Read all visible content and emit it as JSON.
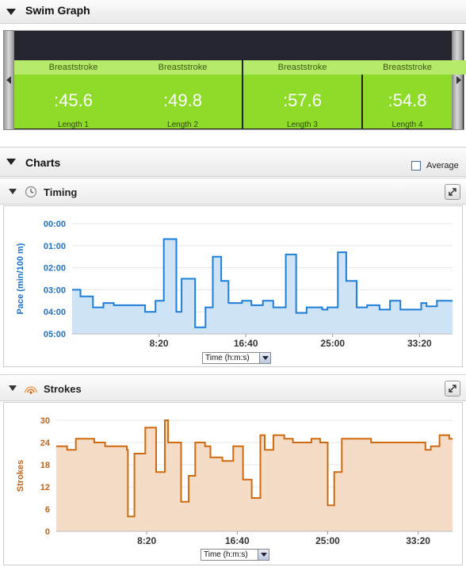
{
  "swim_graph": {
    "title": "Swim Graph",
    "lengths": [
      {
        "stroke": "Breaststroke",
        "time": ":45.6",
        "label": "Length 1"
      },
      {
        "stroke": "Breaststroke",
        "time": ":49.8",
        "label": "Length 2"
      },
      {
        "stroke": "Breaststroke",
        "time": ":57.6",
        "label": "Length 3"
      },
      {
        "stroke": "Breaststroke",
        "time": ":54.8",
        "label": "Length 4"
      }
    ]
  },
  "charts": {
    "title": "Charts",
    "average_label": "Average",
    "average_checked": false
  },
  "colors": {
    "swim_green": "#8fdb2a",
    "pace_line": "#1e7fd8",
    "pace_fill": "#cfe3f7",
    "strokes_line": "#cf6a10",
    "strokes_fill": "#f5dcc6"
  },
  "timing": {
    "title": "Timing",
    "icon": "clock-icon",
    "x_selector": "Time (h:m:s)"
  },
  "strokes": {
    "title": "Strokes",
    "icon": "strokes-icon",
    "x_selector": "Time (h:m:s)"
  },
  "chart_data": [
    {
      "type": "area",
      "ylabel": "Pace (min/100 m)",
      "y_tick_labels": [
        "00:00",
        "01:00",
        "02:00",
        "03:00",
        "04:00",
        "05:00"
      ],
      "ylim": [
        0,
        5
      ],
      "y_inverted": true,
      "x_tick_labels": [
        "8:20",
        "16:40",
        "25:00",
        "33:20"
      ],
      "x_ticks_min": [
        8.333,
        16.667,
        25.0,
        33.333
      ],
      "xlim": [
        0,
        36.5
      ],
      "step": true,
      "x": [
        0,
        0.8,
        2,
        3,
        4,
        7,
        8,
        8.8,
        10,
        10.5,
        11.8,
        12.8,
        13.5,
        14.3,
        15,
        16.3,
        17.2,
        18.3,
        19.3,
        20.5,
        21.5,
        22.5,
        24,
        24.5,
        25.5,
        26.3,
        27.3,
        28.3,
        29.5,
        30.5,
        31.5,
        32,
        33.5,
        34,
        35,
        36.2
      ],
      "y": [
        3.0,
        3.3,
        3.8,
        3.6,
        3.7,
        4.0,
        3.5,
        0.7,
        4.0,
        2.5,
        4.7,
        3.8,
        1.5,
        2.6,
        3.6,
        3.5,
        3.7,
        3.5,
        3.8,
        1.4,
        4.05,
        3.8,
        3.9,
        3.8,
        1.3,
        2.6,
        3.8,
        3.7,
        3.9,
        3.5,
        3.9,
        3.9,
        3.6,
        3.75,
        3.5,
        3.5
      ]
    },
    {
      "type": "area",
      "ylabel": "Strokes",
      "ylim": [
        0,
        30
      ],
      "y_ticks": [
        0,
        6,
        12,
        18,
        24,
        30
      ],
      "x_tick_labels": [
        "8:20",
        "16:40",
        "25:00",
        "33:20"
      ],
      "x_ticks_min": [
        8.333,
        16.667,
        25.0,
        33.333
      ],
      "xlim": [
        0,
        36.5
      ],
      "step": true,
      "x": [
        0,
        1,
        1.8,
        3.5,
        4.5,
        6.5,
        6.6,
        7.2,
        8.2,
        9.2,
        10,
        10.3,
        11.5,
        12.2,
        12.8,
        13.7,
        14.2,
        15.3,
        16.3,
        17.2,
        18,
        18.2,
        18.8,
        19.2,
        20,
        21,
        21.8,
        22.3,
        23.5,
        24.3,
        25,
        25.6,
        26.3,
        29,
        32,
        34,
        34.5,
        35.3,
        36.2
      ],
      "y": [
        23,
        22,
        25,
        24,
        23,
        22,
        4,
        21,
        28,
        16,
        30,
        24,
        8,
        15,
        24,
        23,
        20,
        19,
        23,
        14,
        9,
        9,
        26,
        22,
        26,
        25,
        24,
        24,
        25,
        24,
        7,
        16,
        25,
        24,
        24,
        22,
        23,
        26,
        25
      ]
    }
  ]
}
